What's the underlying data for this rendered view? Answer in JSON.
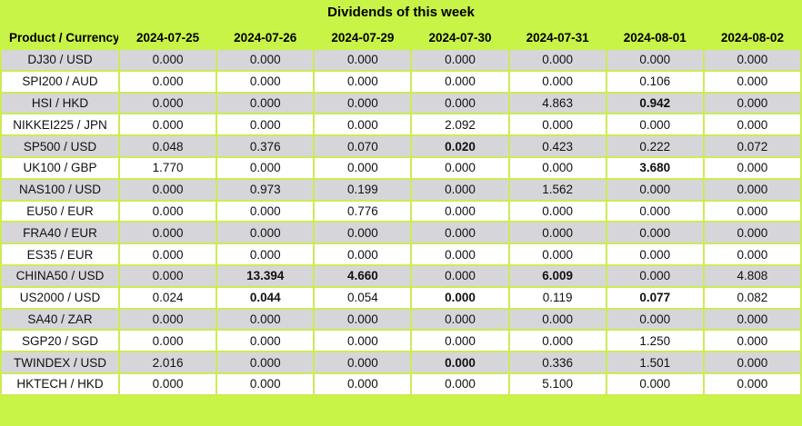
{
  "title": "Dividends of this week",
  "colors": {
    "header_green": "#c8f347",
    "border_green": "#cbec55",
    "row_gray": "#d6d6da",
    "row_white": "#ffffff",
    "text": "#111111"
  },
  "chart_data": {
    "type": "table",
    "title": "Dividends of this week",
    "columns": [
      "Product / Currency",
      "2024-07-25",
      "2024-07-26",
      "2024-07-29",
      "2024-07-30",
      "2024-07-31",
      "2024-08-01",
      "2024-08-02"
    ],
    "rows": [
      {
        "product": "DJ30 / USD",
        "values": [
          "0.000",
          "0.000",
          "0.000",
          "0.000",
          "0.000",
          "0.000",
          "0.000"
        ],
        "bold": []
      },
      {
        "product": "SPI200 / AUD",
        "values": [
          "0.000",
          "0.000",
          "0.000",
          "0.000",
          "0.000",
          "0.106",
          "0.000"
        ],
        "bold": []
      },
      {
        "product": "HSI / HKD",
        "values": [
          "0.000",
          "0.000",
          "0.000",
          "0.000",
          "4.863",
          "0.942",
          "0.000"
        ],
        "bold": [
          5
        ]
      },
      {
        "product": "NIKKEI225 / JPN",
        "values": [
          "0.000",
          "0.000",
          "0.000",
          "2.092",
          "0.000",
          "0.000",
          "0.000"
        ],
        "bold": []
      },
      {
        "product": "SP500 / USD",
        "values": [
          "0.048",
          "0.376",
          "0.070",
          "0.020",
          "0.423",
          "0.222",
          "0.072"
        ],
        "bold": [
          3
        ]
      },
      {
        "product": "UK100 / GBP",
        "values": [
          "1.770",
          "0.000",
          "0.000",
          "0.000",
          "0.000",
          "3.680",
          "0.000"
        ],
        "bold": [
          5
        ]
      },
      {
        "product": "NAS100 / USD",
        "values": [
          "0.000",
          "0.973",
          "0.199",
          "0.000",
          "1.562",
          "0.000",
          "0.000"
        ],
        "bold": []
      },
      {
        "product": "EU50 / EUR",
        "values": [
          "0.000",
          "0.000",
          "0.776",
          "0.000",
          "0.000",
          "0.000",
          "0.000"
        ],
        "bold": []
      },
      {
        "product": "FRA40 / EUR",
        "values": [
          "0.000",
          "0.000",
          "0.000",
          "0.000",
          "0.000",
          "0.000",
          "0.000"
        ],
        "bold": []
      },
      {
        "product": "ES35 / EUR",
        "values": [
          "0.000",
          "0.000",
          "0.000",
          "0.000",
          "0.000",
          "0.000",
          "0.000"
        ],
        "bold": []
      },
      {
        "product": "CHINA50 / USD",
        "values": [
          "0.000",
          "13.394",
          "4.660",
          "0.000",
          "6.009",
          "0.000",
          "4.808"
        ],
        "bold": [
          1,
          2,
          4
        ]
      },
      {
        "product": "US2000 / USD",
        "values": [
          "0.024",
          "0.044",
          "0.054",
          "0.000",
          "0.119",
          "0.077",
          "0.082"
        ],
        "bold": [
          1,
          3,
          5
        ]
      },
      {
        "product": "SA40 / ZAR",
        "values": [
          "0.000",
          "0.000",
          "0.000",
          "0.000",
          "0.000",
          "0.000",
          "0.000"
        ],
        "bold": []
      },
      {
        "product": "SGP20 / SGD",
        "values": [
          "0.000",
          "0.000",
          "0.000",
          "0.000",
          "0.000",
          "1.250",
          "0.000"
        ],
        "bold": []
      },
      {
        "product": "TWINDEX / USD",
        "values": [
          "2.016",
          "0.000",
          "0.000",
          "0.000",
          "0.336",
          "1.501",
          "0.000"
        ],
        "bold": [
          3
        ]
      },
      {
        "product": "HKTECH / HKD",
        "values": [
          "0.000",
          "0.000",
          "0.000",
          "0.000",
          "5.100",
          "0.000",
          "0.000"
        ],
        "bold": []
      }
    ]
  }
}
